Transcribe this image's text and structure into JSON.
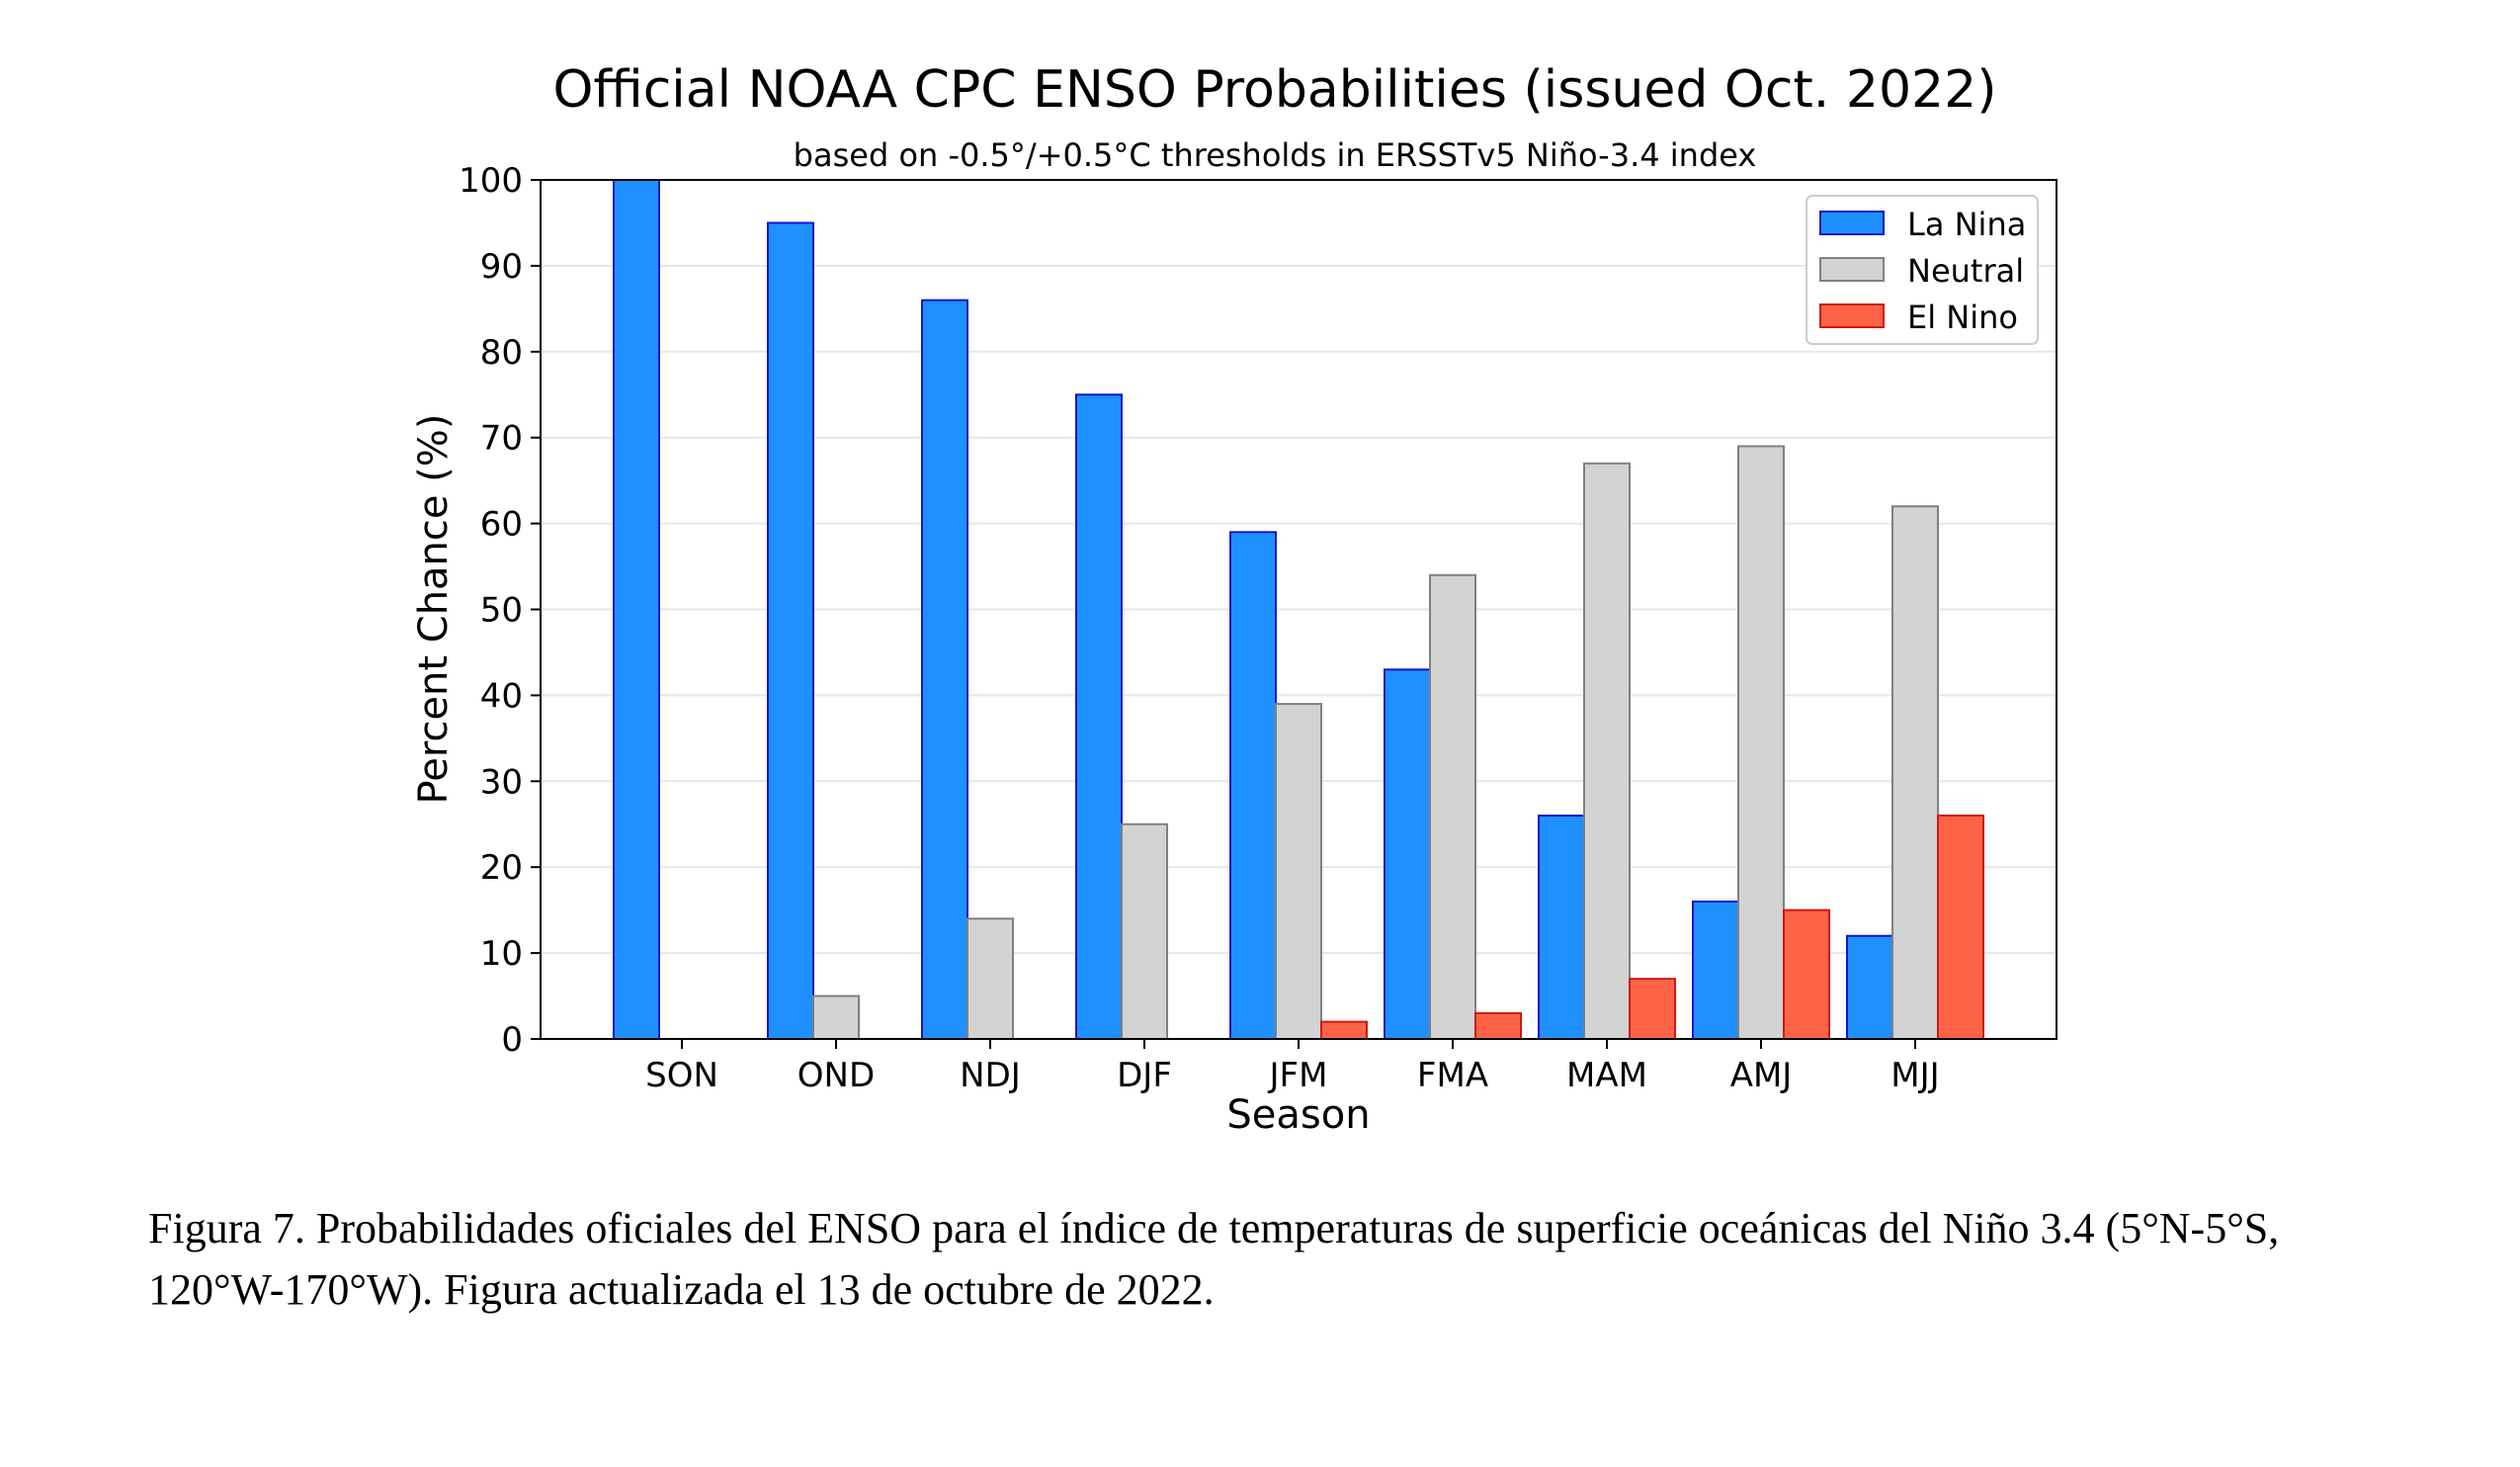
{
  "chart_data": {
    "type": "bar",
    "title": "Official NOAA CPC ENSO Probabilities (issued Oct. 2022)",
    "subtitle": "based on -0.5°/+0.5°C thresholds in ERSSTv5 Niño-3.4 index",
    "xlabel": "Season",
    "ylabel": "Percent Chance (%)",
    "ylim": [
      0,
      100
    ],
    "yticks": [
      0,
      10,
      20,
      30,
      40,
      50,
      60,
      70,
      80,
      90,
      100
    ],
    "grid": true,
    "legend_position": "top-right",
    "categories": [
      "SON",
      "OND",
      "NDJ",
      "DJF",
      "JFM",
      "FMA",
      "MAM",
      "AMJ",
      "MJJ"
    ],
    "series": [
      {
        "name": "La Nina",
        "color": "#1e90ff",
        "edge": "#1515c8",
        "values": [
          100,
          95,
          86,
          75,
          59,
          43,
          26,
          16,
          12
        ]
      },
      {
        "name": "Neutral",
        "color": "#d3d3d3",
        "edge": "#808080",
        "values": [
          0,
          5,
          14,
          25,
          39,
          54,
          67,
          69,
          62
        ]
      },
      {
        "name": "El Nino",
        "color": "#ff6347",
        "edge": "#cc1a10",
        "values": [
          0,
          0,
          0,
          0,
          2,
          3,
          7,
          15,
          26
        ]
      }
    ]
  },
  "caption": "Figura 7. Probabilidades oficiales del ENSO para el índice de temperaturas de superficie oceánicas del Niño 3.4 (5°N-5°S, 120°W-170°W). Figura actualizada el 13 de octubre de 2022."
}
